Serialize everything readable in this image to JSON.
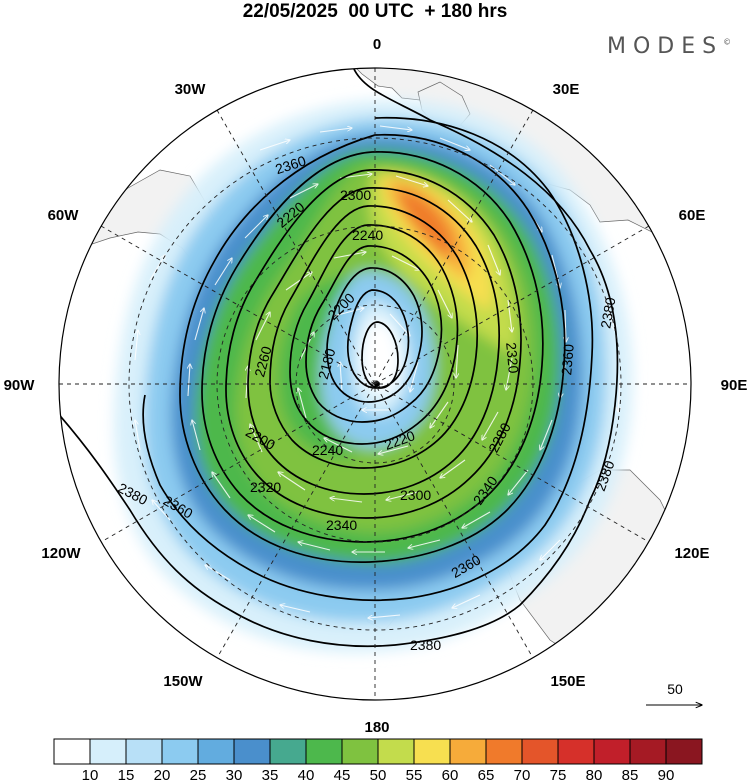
{
  "title": "22/05/2025  00 UTC  + 180 hrs",
  "brand": "MODES",
  "brand_mark": "©",
  "longitude_labels": {
    "0": "0",
    "30E": "30E",
    "60E": "60E",
    "90E": "90E",
    "120E": "120E",
    "150E": "150E",
    "180": "180",
    "150W": "150W",
    "120W": "120W",
    "90W": "90W",
    "60W": "60W",
    "30W": "30W"
  },
  "reference_vector": {
    "label": "50"
  },
  "colorbar": {
    "ticks": [
      "10",
      "15",
      "20",
      "25",
      "30",
      "35",
      "40",
      "45",
      "50",
      "55",
      "60",
      "65",
      "70",
      "75",
      "80",
      "85",
      "90"
    ],
    "colors": [
      "#ffffff",
      "#d6effb",
      "#b8e0f7",
      "#8ccbf0",
      "#62acdf",
      "#4a8fcc",
      "#46a98f",
      "#4db84c",
      "#7fc240",
      "#c3dc4c",
      "#f7df50",
      "#f6ab3a",
      "#f07a2b",
      "#e4552a",
      "#d6302a",
      "#c11f2a",
      "#a51a24",
      "#8a1620"
    ]
  },
  "chart_data": {
    "type": "polar-stereographic map",
    "field": "wind speed (shaded) with vectors and height contours",
    "contour_labels": [
      "2380",
      "2380",
      "2380",
      "2380",
      "2360",
      "2360",
      "2360",
      "2360",
      "2340",
      "2340",
      "2320",
      "2320",
      "2300",
      "2300",
      "2280",
      "2260",
      "2240",
      "2240",
      "2220",
      "2220",
      "2200",
      "2200",
      "2180"
    ]
  }
}
